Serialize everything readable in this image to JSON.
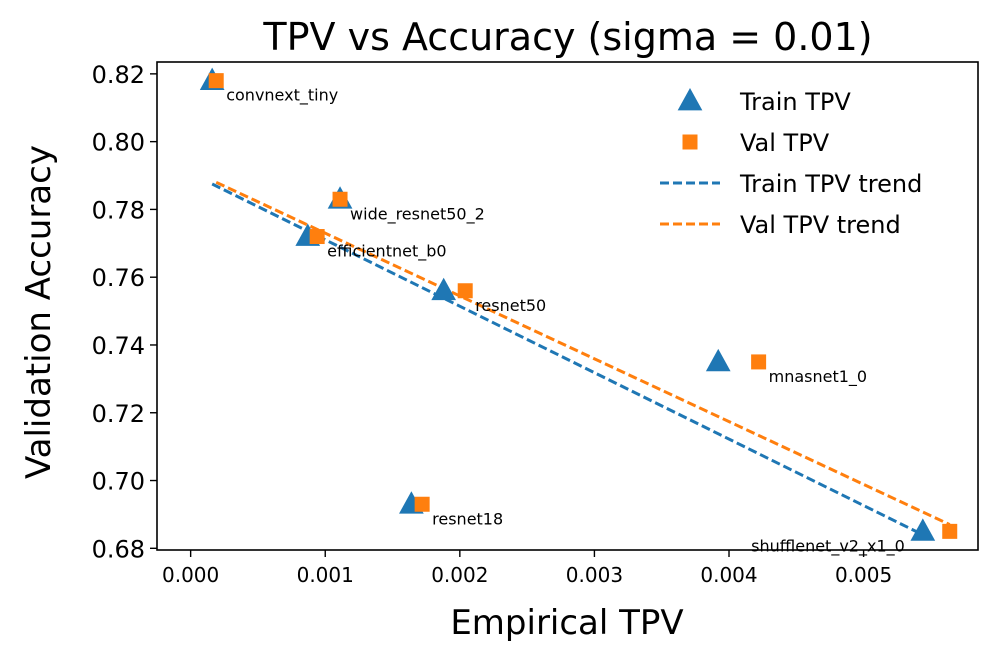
{
  "chart_data": {
    "type": "scatter",
    "title": "TPV vs Accuracy (sigma = 0.01)",
    "xlabel": "Empirical TPV",
    "ylabel": "Validation Accuracy",
    "xlim": [
      -0.00025,
      0.00585
    ],
    "ylim": [
      0.6795,
      0.8235
    ],
    "xticks": [
      0.0,
      0.001,
      0.002,
      0.003,
      0.004,
      0.005
    ],
    "xtick_labels": [
      "0.000",
      "0.001",
      "0.002",
      "0.003",
      "0.004",
      "0.005"
    ],
    "yticks": [
      0.68,
      0.7,
      0.72,
      0.74,
      0.76,
      0.78,
      0.8,
      0.82
    ],
    "ytick_labels": [
      "0.68",
      "0.70",
      "0.72",
      "0.74",
      "0.76",
      "0.78",
      "0.80",
      "0.82"
    ],
    "grid": false,
    "legend_position": "top-right",
    "models": [
      {
        "name": "convnext_tiny",
        "accuracy": 0.818,
        "train_tpv": 0.00016,
        "val_tpv": 0.00019,
        "label_side": "right"
      },
      {
        "name": "wide_resnet50_2",
        "accuracy": 0.783,
        "train_tpv": 0.00111,
        "val_tpv": 0.00111,
        "label_side": "right"
      },
      {
        "name": "efficientnet_b0",
        "accuracy": 0.772,
        "train_tpv": 0.00087,
        "val_tpv": 0.00094,
        "label_side": "right"
      },
      {
        "name": "resnet50",
        "accuracy": 0.756,
        "train_tpv": 0.00188,
        "val_tpv": 0.00204,
        "label_side": "right"
      },
      {
        "name": "mnasnet1_0",
        "accuracy": 0.735,
        "train_tpv": 0.00392,
        "val_tpv": 0.00422,
        "label_side": "right"
      },
      {
        "name": "resnet18",
        "accuracy": 0.693,
        "train_tpv": 0.00164,
        "val_tpv": 0.00172,
        "label_side": "right"
      },
      {
        "name": "shufflenet_v2_x1_0",
        "accuracy": 0.685,
        "train_tpv": 0.00544,
        "val_tpv": 0.00564,
        "label_side": "left"
      }
    ],
    "series": [
      {
        "name": "Train TPV",
        "marker": "triangle",
        "color": "#1f77b4"
      },
      {
        "name": "Val TPV",
        "marker": "square",
        "color": "#ff7f0e"
      },
      {
        "name": "Train TPV trend",
        "line": "dashed",
        "color": "#1f77b4",
        "x": [
          0.00016,
          0.00544
        ],
        "y": [
          0.7875,
          0.684
        ]
      },
      {
        "name": "Val TPV trend",
        "line": "dashed",
        "color": "#ff7f0e",
        "x": [
          0.00019,
          0.00564
        ],
        "y": [
          0.788,
          0.687
        ]
      }
    ]
  }
}
